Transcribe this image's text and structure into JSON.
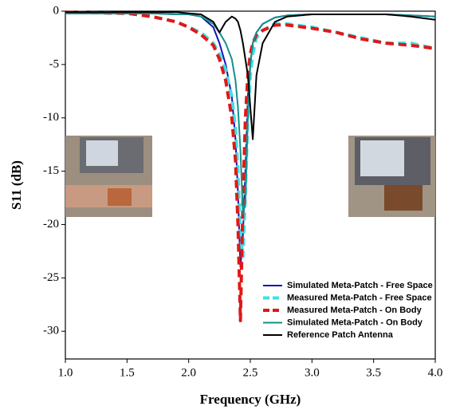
{
  "chart_data": {
    "type": "line",
    "x_label": "Frequency (GHz)",
    "y_label": "S11 (dB)",
    "x": [
      1.0,
      1.5,
      1.7,
      1.9,
      2.0,
      2.1,
      2.2,
      2.25,
      2.3,
      2.35,
      2.38,
      2.4,
      2.42,
      2.44,
      2.46,
      2.48,
      2.5,
      2.52,
      2.55,
      2.6,
      2.7,
      2.8,
      3.0,
      3.2,
      3.4,
      3.6,
      3.8,
      4.0
    ],
    "xlim": [
      1.0,
      4.0
    ],
    "xticks": [
      {
        "value": 1.0,
        "label": "1.0"
      },
      1.5,
      {
        "value": 2.0,
        "label": "2.0"
      },
      2.5,
      {
        "value": 3.0,
        "label": "3.0"
      },
      3.5,
      {
        "value": 4.0,
        "label": "4.0"
      }
    ],
    "ylim": [
      -32.6,
      0
    ],
    "yticks": [
      0,
      -5,
      -10,
      -15,
      -20,
      -25,
      -30
    ],
    "legend_position": "lower right",
    "series": [
      {
        "name": "Simulated Meta-Patch - Free Space",
        "color": "#1414b8",
        "style": "solid",
        "values": [
          -0.2,
          -0.2,
          -0.2,
          -0.3,
          -0.3,
          -0.5,
          -1.5,
          -3,
          -5,
          -8,
          -12,
          -17,
          -24,
          -21,
          -15,
          -8,
          -5,
          -3,
          -2,
          -1.2,
          -0.6,
          -0.4,
          -0.3,
          -0.3,
          -0.3,
          -0.3,
          -0.4,
          -0.5
        ]
      },
      {
        "name": "Measured Meta-Patch - Free Space",
        "color": "#3fe0e4",
        "style": "dashed",
        "values": [
          -0.1,
          -0.2,
          -0.5,
          -1,
          -1.5,
          -2,
          -3,
          -4,
          -5.5,
          -8,
          -11,
          -15,
          -21,
          -23,
          -17,
          -10,
          -6,
          -4,
          -2.5,
          -1.8,
          -1.2,
          -1.2,
          -1.5,
          -2,
          -2.5,
          -3,
          -3,
          -3.5
        ]
      },
      {
        "name": "Measured Meta-Patch - On Body",
        "color": "#e01818",
        "style": "dashed",
        "values": [
          -0.1,
          -0.2,
          -0.5,
          -1,
          -1.5,
          -2.2,
          -3.2,
          -4.5,
          -6.5,
          -10,
          -14,
          -20,
          -29,
          -18,
          -10,
          -6,
          -4,
          -3,
          -2.2,
          -1.8,
          -1.3,
          -1.3,
          -1.6,
          -2,
          -2.6,
          -3,
          -3.2,
          -3.5
        ]
      },
      {
        "name": "Simulated Meta-Patch - On Body",
        "color": "#13908a",
        "style": "solid",
        "values": [
          -0.2,
          -0.2,
          -0.2,
          -0.3,
          -0.3,
          -0.5,
          -1.2,
          -2,
          -3,
          -4.5,
          -6.5,
          -9,
          -13,
          -19,
          -18,
          -10,
          -5,
          -3,
          -2,
          -1.2,
          -0.6,
          -0.4,
          -0.3,
          -0.3,
          -0.3,
          -0.3,
          -0.4,
          -0.5
        ]
      },
      {
        "name": "Reference Patch Antenna",
        "color": "#000000",
        "style": "solid",
        "values": [
          -0.1,
          -0.1,
          -0.1,
          -0.1,
          -0.2,
          -0.3,
          -1,
          -2,
          -1,
          -0.5,
          -0.7,
          -1,
          -1.8,
          -3,
          -4.5,
          -6,
          -9,
          -12,
          -6,
          -3,
          -1,
          -0.5,
          -0.3,
          -0.3,
          -0.3,
          -0.3,
          -0.5,
          -0.8
        ]
      }
    ]
  }
}
